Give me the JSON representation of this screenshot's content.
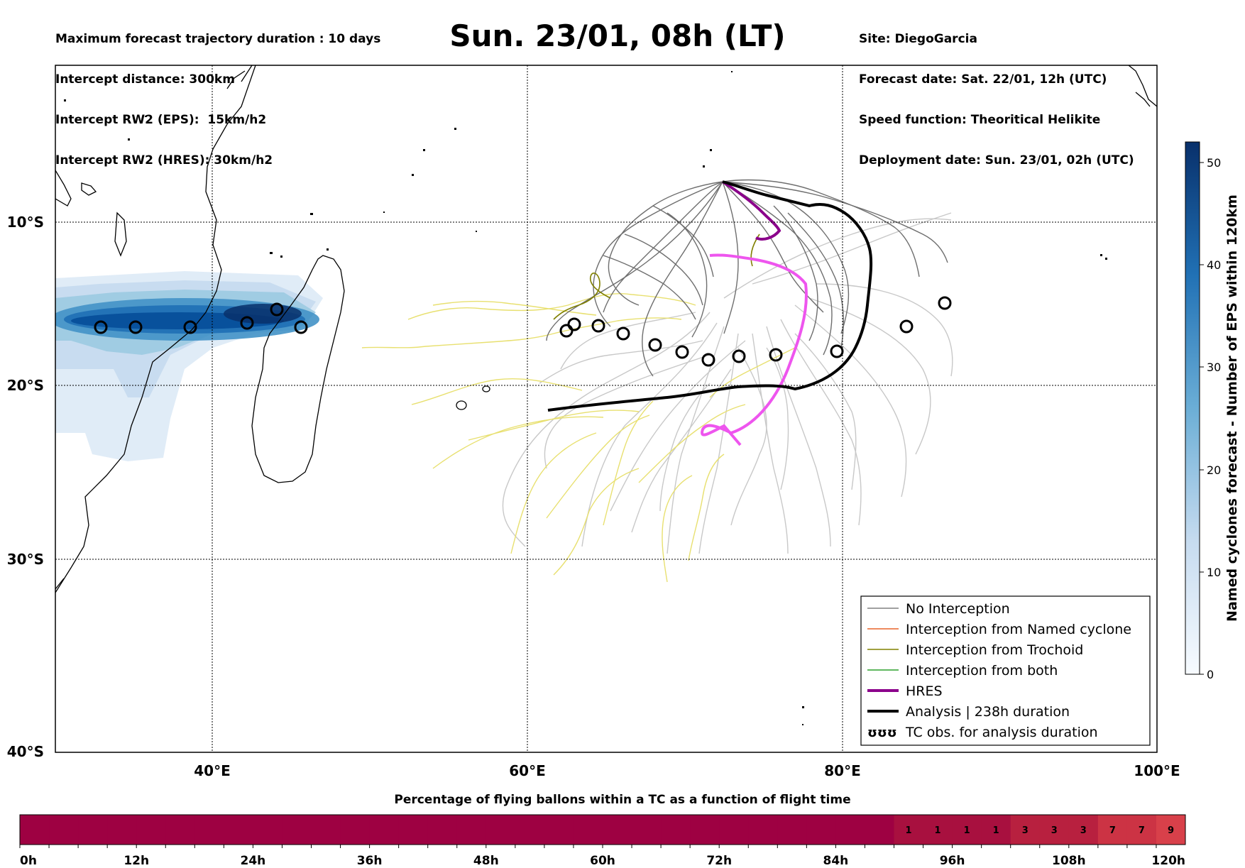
{
  "header_left": [
    "Maximum forecast trajectory duration : 10 days",
    "Intercept distance: 300km",
    "Intercept RW2 (EPS):  15km/h2",
    "Intercept RW2 (HRES): 30km/h2"
  ],
  "header_right": [
    "Site: DiegoGarcia",
    "Forecast date: Sat. 22/01, 12h (UTC)",
    "Speed function: Theoritical Helikite",
    "Deployment date: Sun. 23/01, 02h (UTC)"
  ],
  "title": "Sun. 23/01, 08h (LT)",
  "map": {
    "lon_ticks": [
      "40°E",
      "60°E",
      "80°E",
      "100°E"
    ],
    "lat_ticks": [
      "10°S",
      "20°S",
      "30°S",
      "40°S"
    ],
    "lon_range": [
      30,
      100
    ],
    "lat_range": [
      -40,
      -0.4
    ]
  },
  "colorbar": {
    "label": "Named cyclones forecast - Number of EPS within 120km",
    "ticks": [
      "0",
      "10",
      "20",
      "30",
      "40",
      "50"
    ],
    "range": [
      0,
      52
    ]
  },
  "legend": {
    "items": [
      {
        "label": "No Interception",
        "color": "#808080",
        "style": "thin"
      },
      {
        "label": "Interception from Named cyclone",
        "color": "#e8642a",
        "style": "thin"
      },
      {
        "label": "Interception from Trochoid",
        "color": "#808000",
        "style": "thin"
      },
      {
        "label": "Interception from both",
        "color": "#2ca02c",
        "style": "thin"
      },
      {
        "label": "HRES",
        "color": "#8b008b",
        "style": "thick"
      },
      {
        "label": "Analysis | 238h duration",
        "color": "#000000",
        "style": "thick"
      },
      {
        "label": "TC obs. for analysis duration",
        "color": "#000000",
        "style": "symbol",
        "symbol": "ʊʊʊ"
      }
    ]
  },
  "timebar": {
    "title": "Percentage of flying ballons within a TC as a function of flight time",
    "tick_labels": [
      "0h",
      "12h",
      "24h",
      "36h",
      "48h",
      "60h",
      "72h",
      "84h",
      "96h",
      "108h",
      "120h"
    ],
    "cells": [
      0,
      0,
      0,
      0,
      0,
      0,
      0,
      0,
      0,
      0,
      0,
      0,
      0,
      0,
      0,
      0,
      0,
      0,
      0,
      0,
      0,
      0,
      0,
      0,
      0,
      0,
      0,
      0,
      0,
      0,
      1,
      1,
      1,
      1,
      3,
      3,
      3,
      7,
      7,
      9
    ],
    "cell_labels": [
      "",
      "",
      "",
      "",
      "",
      "",
      "",
      "",
      "",
      "",
      "",
      "",
      "",
      "",
      "",
      "",
      "",
      "",
      "",
      "",
      "",
      "",
      "",
      "",
      "",
      "",
      "",
      "",
      "",
      "",
      "1",
      "1",
      "1",
      "1",
      "3",
      "3",
      "3",
      "7",
      "7",
      "9"
    ]
  },
  "colors": {
    "hres": "#8b008b",
    "hres_alt": "#ee55ee",
    "analysis": "#000000",
    "no_interception": "#808080",
    "ensemble_light": "#c8c8c8",
    "trochoid_yellow": "#e8e070",
    "trochoid": "#808000",
    "timebar_base": "#9e0142"
  }
}
